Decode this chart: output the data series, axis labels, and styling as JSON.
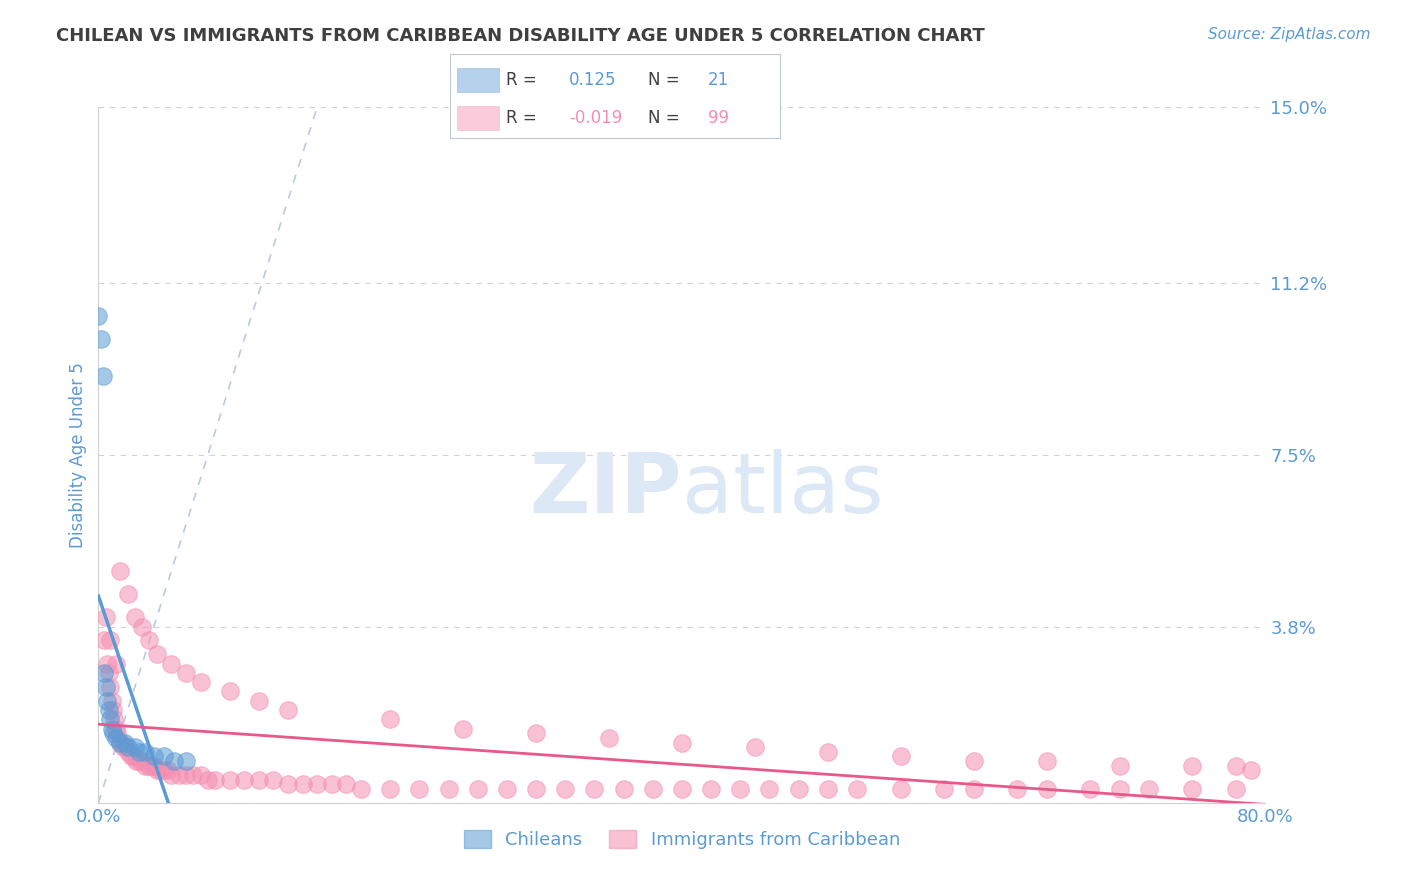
{
  "title": "CHILEAN VS IMMIGRANTS FROM CARIBBEAN DISABILITY AGE UNDER 5 CORRELATION CHART",
  "source": "Source: ZipAtlas.com",
  "ylabel": "Disability Age Under 5",
  "xlim": [
    0.0,
    0.8
  ],
  "ylim": [
    0.0,
    0.15
  ],
  "ytick_vals": [
    0.038,
    0.075,
    0.112,
    0.15
  ],
  "ytick_labels": [
    "3.8%",
    "7.5%",
    "11.2%",
    "15.0%"
  ],
  "xtick_vals": [
    0.0,
    0.2,
    0.4,
    0.6,
    0.8
  ],
  "xtick_labels": [
    "0.0%",
    "",
    "",
    "",
    "80.0%"
  ],
  "blue_color": "#5b9bd5",
  "pink_color": "#f48fb1",
  "pink_line_color": "#e8588a",
  "title_color": "#3f3f3f",
  "tick_color": "#5b9bd5",
  "grid_color": "#c8c8c8",
  "source_color": "#5b9bd5",
  "watermark_color": "#dce8f5",
  "background_color": "#ffffff",
  "chi_x": [
    0.0,
    0.002,
    0.003,
    0.004,
    0.005,
    0.006,
    0.007,
    0.008,
    0.009,
    0.01,
    0.012,
    0.015,
    0.018,
    0.02,
    0.025,
    0.028,
    0.032,
    0.038,
    0.045,
    0.052,
    0.06
  ],
  "chi_y": [
    0.105,
    0.1,
    0.092,
    0.028,
    0.025,
    0.022,
    0.02,
    0.018,
    0.016,
    0.015,
    0.014,
    0.013,
    0.013,
    0.012,
    0.012,
    0.011,
    0.011,
    0.01,
    0.01,
    0.009,
    0.009
  ],
  "carib_x": [
    0.004,
    0.006,
    0.007,
    0.008,
    0.009,
    0.01,
    0.011,
    0.012,
    0.013,
    0.015,
    0.016,
    0.017,
    0.018,
    0.02,
    0.022,
    0.024,
    0.026,
    0.028,
    0.03,
    0.032,
    0.034,
    0.036,
    0.038,
    0.04,
    0.042,
    0.045,
    0.048,
    0.05,
    0.055,
    0.06,
    0.065,
    0.07,
    0.075,
    0.08,
    0.09,
    0.1,
    0.11,
    0.12,
    0.13,
    0.14,
    0.15,
    0.16,
    0.17,
    0.18,
    0.2,
    0.22,
    0.24,
    0.26,
    0.28,
    0.3,
    0.32,
    0.34,
    0.36,
    0.38,
    0.4,
    0.42,
    0.44,
    0.46,
    0.48,
    0.5,
    0.52,
    0.55,
    0.58,
    0.6,
    0.63,
    0.65,
    0.68,
    0.7,
    0.72,
    0.75,
    0.78,
    0.015,
    0.02,
    0.025,
    0.03,
    0.035,
    0.04,
    0.05,
    0.06,
    0.07,
    0.09,
    0.11,
    0.13,
    0.2,
    0.25,
    0.3,
    0.35,
    0.4,
    0.45,
    0.5,
    0.55,
    0.6,
    0.65,
    0.7,
    0.75,
    0.78,
    0.79,
    0.005,
    0.008,
    0.012
  ],
  "carib_y": [
    0.035,
    0.03,
    0.028,
    0.025,
    0.022,
    0.02,
    0.018,
    0.016,
    0.015,
    0.013,
    0.013,
    0.012,
    0.012,
    0.011,
    0.01,
    0.01,
    0.009,
    0.009,
    0.009,
    0.008,
    0.008,
    0.008,
    0.008,
    0.007,
    0.007,
    0.007,
    0.007,
    0.006,
    0.006,
    0.006,
    0.006,
    0.006,
    0.005,
    0.005,
    0.005,
    0.005,
    0.005,
    0.005,
    0.004,
    0.004,
    0.004,
    0.004,
    0.004,
    0.003,
    0.003,
    0.003,
    0.003,
    0.003,
    0.003,
    0.003,
    0.003,
    0.003,
    0.003,
    0.003,
    0.003,
    0.003,
    0.003,
    0.003,
    0.003,
    0.003,
    0.003,
    0.003,
    0.003,
    0.003,
    0.003,
    0.003,
    0.003,
    0.003,
    0.003,
    0.003,
    0.003,
    0.05,
    0.045,
    0.04,
    0.038,
    0.035,
    0.032,
    0.03,
    0.028,
    0.026,
    0.024,
    0.022,
    0.02,
    0.018,
    0.016,
    0.015,
    0.014,
    0.013,
    0.012,
    0.011,
    0.01,
    0.009,
    0.009,
    0.008,
    0.008,
    0.008,
    0.007,
    0.04,
    0.035,
    0.03
  ]
}
